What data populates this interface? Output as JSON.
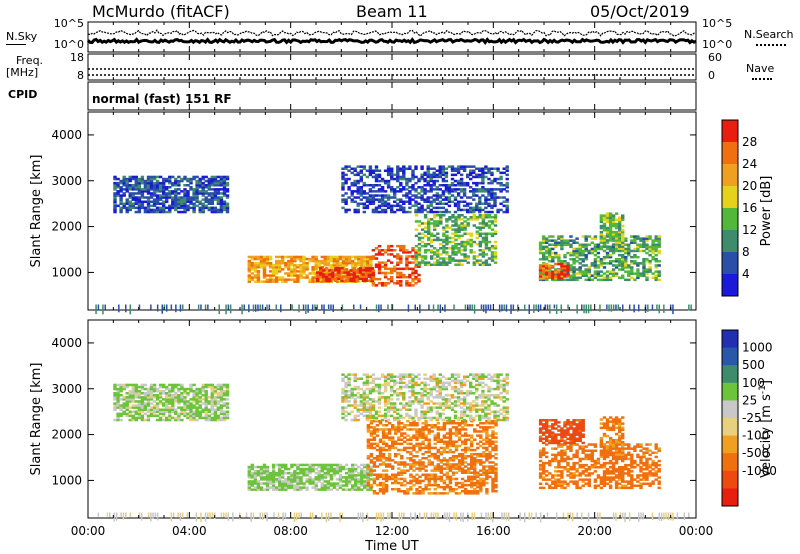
{
  "header": {
    "station": "McMurdo (fitACF)",
    "beam": "Beam 11",
    "date": "05/Oct/2019"
  },
  "noise_panel": {
    "left_label": "N.Sky",
    "right_label": "N.Search",
    "ticks": [
      "10^5",
      "10^0"
    ]
  },
  "freq_panel": {
    "left_label_1": "Freq.",
    "left_label_2": "[MHz]",
    "left_ticks": [
      "18",
      "8"
    ],
    "right_label": "Nave",
    "right_ticks": [
      "60",
      "0"
    ]
  },
  "cpid_panel": {
    "label": "CPID",
    "text": "normal (fast) 151 RF"
  },
  "colors": {
    "power": [
      "#1a1ad8",
      "#2a4fa8",
      "#3e8c6c",
      "#52b83a",
      "#e6d21a",
      "#f0a020",
      "#f07010",
      "#e81e0e"
    ],
    "velocity": [
      "#e81e0e",
      "#ec4a10",
      "#f07010",
      "#f0a020",
      "#e8d080",
      "#c8c8c8",
      "#6cc43a",
      "#3e8c6c",
      "#2a58a8",
      "#2030b0"
    ]
  },
  "chart_data": [
    {
      "type": "heatmap",
      "quantity": "Power",
      "ylabel": "Slant Range [km]",
      "xlabel": "Time UT",
      "x_ticks": [
        "00:00",
        "04:00",
        "08:00",
        "12:00",
        "16:00",
        "20:00",
        "00:00"
      ],
      "y_ticks": [
        1000,
        2000,
        3000,
        4000
      ],
      "ylim": [
        180,
        4500
      ],
      "colorbar": {
        "label": "Power [dB]",
        "ticks": [
          4,
          8,
          12,
          16,
          20,
          24,
          28
        ],
        "range": [
          0,
          32
        ]
      },
      "echo_regions": [
        {
          "t": [
            6.3,
            11.2
          ],
          "r": [
            780,
            1350
          ],
          "level": 22
        },
        {
          "t": [
            9.0,
            11.2
          ],
          "r": [
            800,
            1100
          ],
          "level": 29
        },
        {
          "t": [
            11.2,
            13.0
          ],
          "r": [
            700,
            1600
          ],
          "level": 28
        },
        {
          "t": [
            12.9,
            16.1
          ],
          "r": [
            1150,
            2250
          ],
          "level": 13
        },
        {
          "t": [
            17.8,
            22.6
          ],
          "r": [
            820,
            1800
          ],
          "level": 12
        },
        {
          "t": [
            17.8,
            18.9
          ],
          "r": [
            850,
            1200
          ],
          "level": 28
        },
        {
          "t": [
            20.2,
            21.1
          ],
          "r": [
            1500,
            2300
          ],
          "level": 14
        },
        {
          "t": [
            1.0,
            5.5
          ],
          "r": [
            2300,
            3100
          ],
          "level": 6
        },
        {
          "t": [
            10.0,
            16.5
          ],
          "r": [
            2300,
            3300
          ],
          "level": 5
        }
      ]
    },
    {
      "type": "heatmap",
      "quantity": "Velocity",
      "ylabel": "Slant Range [km]",
      "xlabel": "Time UT",
      "x_ticks": [
        "00:00",
        "04:00",
        "08:00",
        "12:00",
        "16:00",
        "20:00",
        "00:00"
      ],
      "y_ticks": [
        1000,
        2000,
        3000,
        4000
      ],
      "ylim": [
        180,
        4500
      ],
      "colorbar": {
        "label": "Velocity [m s-1]",
        "ticks": [
          1000,
          500,
          100,
          25,
          -25,
          -100,
          -500,
          -1000
        ],
        "range": [
          -1250,
          1250
        ]
      },
      "echo_regions": [
        {
          "t": [
            6.3,
            11.2
          ],
          "r": [
            780,
            1350
          ],
          "level": 150
        },
        {
          "t": [
            11.0,
            16.1
          ],
          "r": [
            700,
            2300
          ],
          "level": -150
        },
        {
          "t": [
            17.8,
            22.6
          ],
          "r": [
            820,
            1800
          ],
          "level": -200
        },
        {
          "t": [
            17.8,
            19.5
          ],
          "r": [
            1800,
            2300
          ],
          "level": -600
        },
        {
          "t": [
            20.2,
            21.1
          ],
          "r": [
            1500,
            2400
          ],
          "level": -150
        },
        {
          "t": [
            1.0,
            5.5
          ],
          "r": [
            2300,
            3100
          ],
          "level": 120
        },
        {
          "t": [
            10.0,
            16.5
          ],
          "r": [
            2300,
            3300
          ],
          "level": 60
        }
      ]
    }
  ],
  "ylabel_text": "Slant Range [km]",
  "xlabel_text": "Time UT",
  "cbar1_label": "Power [dB]",
  "cbar2_label": "Velocity [m s",
  "cbar2_sup": "-1",
  "cbar2_close": "]"
}
